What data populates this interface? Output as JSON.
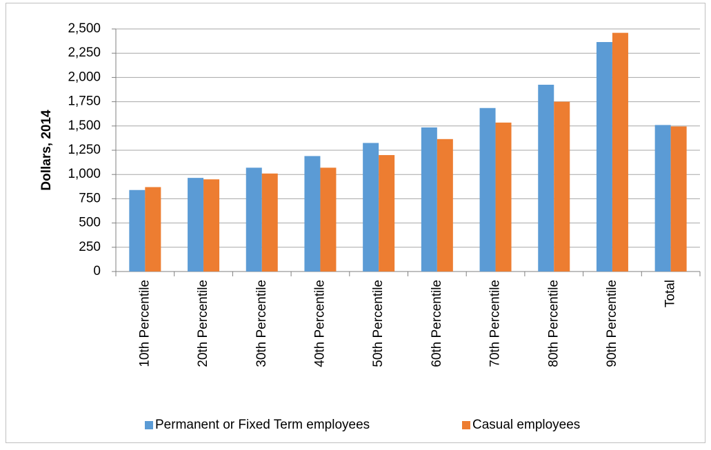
{
  "chart_data": {
    "type": "bar",
    "y_label": "Dollars, 2014",
    "categories": [
      "10th Percentile",
      "20th Percentile",
      "30th Percentile",
      "40th Percentile",
      "50th Percentile",
      "60th Percentile",
      "70th Percentile",
      "80th Percentile",
      "90th Percentile",
      "Total"
    ],
    "series": [
      {
        "name": "Permanent or Fixed Term employees",
        "color": "#5b9bd5",
        "values": [
          840,
          965,
          1070,
          1190,
          1325,
          1485,
          1685,
          1925,
          2365,
          1510
        ]
      },
      {
        "name": "Casual employees",
        "color": "#ed7d31",
        "values": [
          870,
          950,
          1010,
          1070,
          1200,
          1365,
          1535,
          1750,
          2460,
          1495
        ]
      }
    ],
    "ylim": [
      0,
      2500
    ],
    "yticks": [
      0,
      250,
      500,
      750,
      {
        "value": 1000,
        "label": "1,000"
      },
      {
        "value": 1250,
        "label": "1,250"
      },
      {
        "value": 1500,
        "label": "1,500"
      },
      {
        "value": 1750,
        "label": "1,750"
      },
      {
        "value": 2000,
        "label": "2,000"
      },
      {
        "value": 2250,
        "label": "2,250"
      },
      {
        "value": 2500,
        "label": "2,500"
      }
    ],
    "grid": true,
    "legend": "bottom"
  }
}
